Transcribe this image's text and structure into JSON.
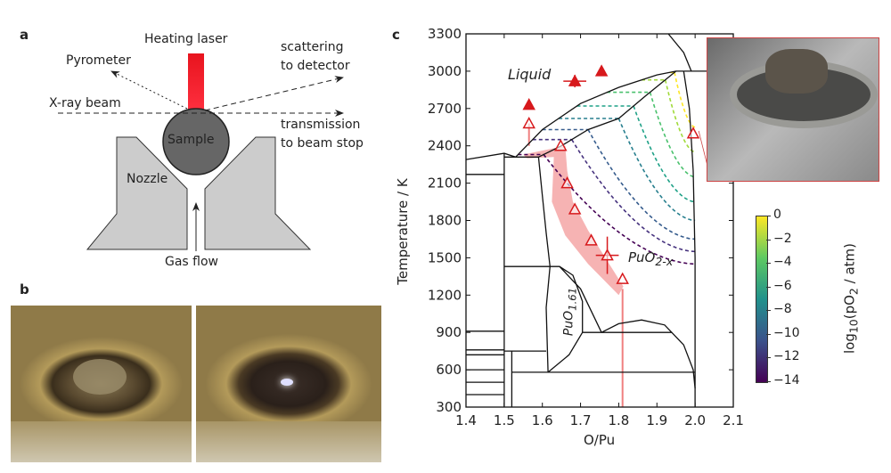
{
  "panel_labels": {
    "a": "a",
    "b": "b",
    "c": "c"
  },
  "schematic": {
    "heating_laser": "Heating laser",
    "pyrometer": "Pyrometer",
    "scattering": [
      "scattering",
      "to detector"
    ],
    "xray": "X-ray beam",
    "transmission": [
      "transmission",
      "to beam stop"
    ],
    "sample": "Sample",
    "nozzle": "Nozzle",
    "gas_flow": "Gas flow",
    "colors": {
      "laser": "#e8141e",
      "sample": "#666666",
      "nozzle": "#cccccc"
    }
  },
  "chart_data": {
    "type": "scatter",
    "xlabel": "O/Pu",
    "ylabel": "Temperature / K",
    "xlim": [
      1.4,
      2.1
    ],
    "ylim": [
      300,
      3300
    ],
    "xticks": [
      "1.4",
      "1.5",
      "1.6",
      "1.7",
      "1.8",
      "1.9",
      "2.0",
      "2.1"
    ],
    "yticks": [
      "300",
      "600",
      "900",
      "1200",
      "1500",
      "1800",
      "2100",
      "2400",
      "2700",
      "3000",
      "3300"
    ],
    "annotations": {
      "liquid": "Liquid",
      "puo2x_base": "PuO",
      "puo2x_sub": "2-x",
      "puo161_base": "PuO",
      "puo161_sub": "1.61"
    },
    "filled_points": [
      {
        "x": 1.565,
        "y": 2730
      },
      {
        "x": 1.685,
        "y": 2920,
        "xerr": 0.03,
        "yerr": 50
      },
      {
        "x": 1.755,
        "y": 3000
      }
    ],
    "open_points": [
      {
        "x": 1.565,
        "y": 2580
      },
      {
        "x": 1.648,
        "y": 2400
      },
      {
        "x": 1.665,
        "y": 2100
      },
      {
        "x": 1.685,
        "y": 1890
      },
      {
        "x": 1.728,
        "y": 1640
      },
      {
        "x": 1.77,
        "y": 1520,
        "xerr": 0.03,
        "yerr": 150
      },
      {
        "x": 1.81,
        "y": 1330
      },
      {
        "x": 1.995,
        "y": 2500
      }
    ],
    "marker_color": "#d7191c",
    "colorbar": {
      "label_pre": "log",
      "label_sub": "10",
      "label_post": "(pO",
      "label_sub2": "2",
      "label_end": " / atm)",
      "range": [
        -14,
        0
      ],
      "ticks": [
        "0",
        "−2",
        "−4",
        "−6",
        "−8",
        "−10",
        "−12",
        "−14"
      ],
      "colormap": "viridis"
    }
  }
}
